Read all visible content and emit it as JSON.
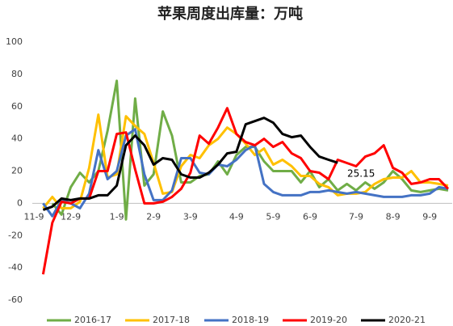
{
  "chart_data": {
    "type": "line",
    "title": "苹果周度出库量：万吨",
    "categories": [
      "11-9",
      null,
      null,
      null,
      "12-9",
      null,
      null,
      null,
      null,
      "1-9",
      null,
      null,
      null,
      "2-9",
      null,
      null,
      null,
      "3-9",
      null,
      null,
      null,
      null,
      "4-9",
      null,
      null,
      null,
      "5-9",
      null,
      null,
      null,
      "6-9",
      null,
      null,
      null,
      null,
      "7-9",
      null,
      null,
      null,
      "8-9",
      null,
      null,
      null,
      "9-9",
      null,
      null
    ],
    "ylim": [
      -60,
      100
    ],
    "yticks": [
      -60,
      -40,
      -20,
      0,
      20,
      40,
      60,
      80,
      100
    ],
    "grid": false,
    "legend": "bottom",
    "series": [
      {
        "name": "2016-17",
        "color": "#70ad47",
        "values": [
          null,
          null,
          0,
          -7,
          10,
          19,
          13,
          20,
          45,
          76,
          -10,
          65,
          11,
          18,
          57,
          42,
          13,
          13,
          17,
          18,
          26,
          18,
          30,
          35,
          35,
          26,
          20,
          20,
          20,
          13,
          20,
          10,
          15,
          8,
          12,
          8,
          13,
          9,
          13,
          20,
          15,
          8,
          7,
          8,
          9,
          8
        ]
      },
      {
        "name": "2017-18",
        "color": "#ffc000",
        "values": [
          null,
          -3,
          4,
          -3,
          -3,
          1,
          22,
          55,
          16,
          18,
          54,
          48,
          43,
          25,
          6,
          7,
          23,
          30,
          28,
          36,
          40,
          47,
          43,
          37,
          30,
          34,
          24,
          27,
          23,
          17,
          17,
          12,
          10,
          5,
          6,
          6,
          7,
          12,
          15,
          16,
          16,
          20,
          13,
          13,
          12,
          11
        ]
      },
      {
        "name": "2018-19",
        "color": "#4472c4",
        "values": [
          null,
          0,
          -8,
          2,
          0,
          -3,
          6,
          33,
          15,
          20,
          42,
          46,
          18,
          2,
          2,
          8,
          28,
          28,
          19,
          18,
          24,
          23,
          27,
          33,
          36,
          12,
          7,
          5,
          5,
          5,
          7,
          7,
          8,
          7,
          6,
          7,
          6,
          5,
          4,
          4,
          4,
          5,
          5,
          6,
          10,
          9
        ]
      },
      {
        "name": "2019-20",
        "color": "#ff0000",
        "values": [
          null,
          -44,
          -12,
          1,
          0,
          3,
          3,
          20,
          20,
          43,
          44,
          21,
          0,
          0,
          1,
          4,
          9,
          19,
          42,
          37,
          47,
          59,
          43,
          38,
          36,
          40,
          35,
          38,
          31,
          28,
          20,
          19,
          15,
          27,
          25,
          23,
          29,
          31,
          36,
          22,
          19,
          12,
          13,
          15,
          15,
          9
        ]
      },
      {
        "name": "2020-21",
        "color": "#000000",
        "values": [
          null,
          -4,
          -2,
          3,
          2,
          3,
          3,
          5,
          5,
          11,
          36,
          42,
          36,
          24,
          28,
          27,
          18,
          16,
          16,
          19,
          24,
          31,
          32,
          49,
          51,
          53,
          50,
          43,
          41,
          42,
          35,
          29,
          27,
          25.15,
          null,
          null,
          null,
          null,
          null,
          null,
          null,
          null,
          null,
          null,
          null,
          null
        ]
      }
    ],
    "annotation": "25.15"
  }
}
